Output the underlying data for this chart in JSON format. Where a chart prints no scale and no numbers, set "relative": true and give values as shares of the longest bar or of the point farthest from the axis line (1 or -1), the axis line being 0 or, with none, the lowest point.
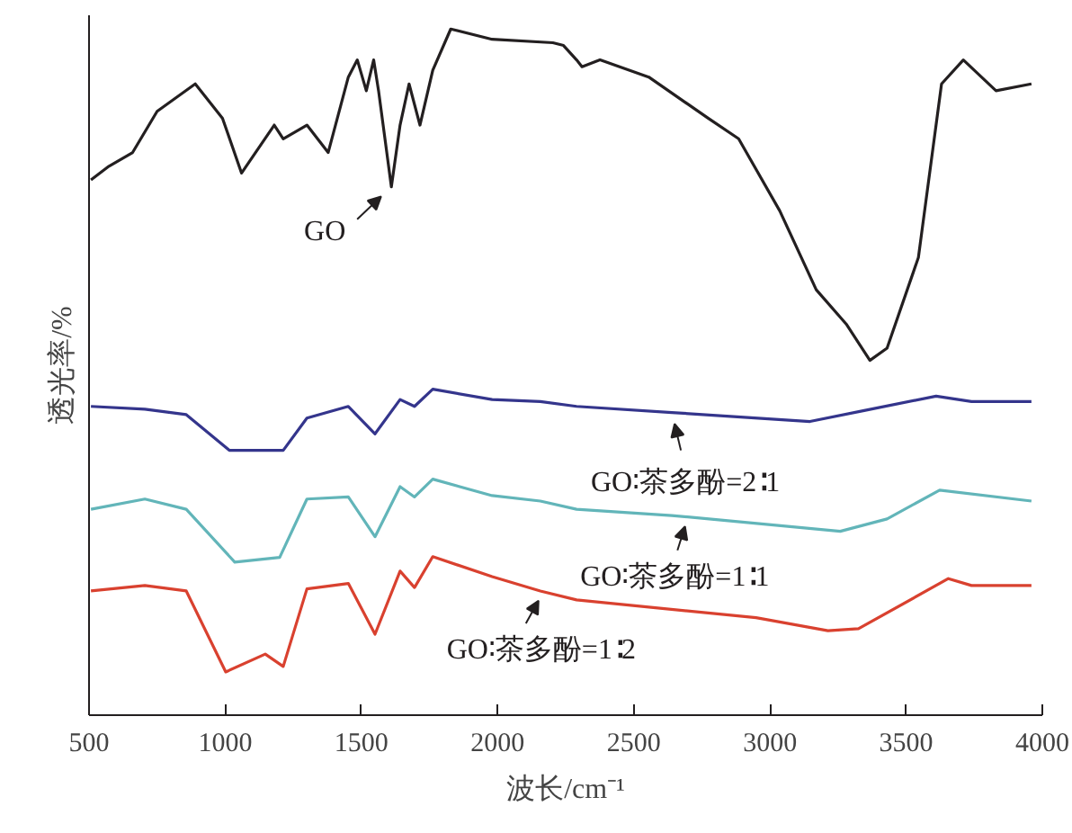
{
  "chart_data": {
    "type": "line",
    "relative": true,
    "xlabel": "波长/cm⁻¹",
    "ylabel": "透光率/%",
    "xlim": [
      500,
      4000
    ],
    "xticks": [
      500,
      1000,
      1500,
      2000,
      2500,
      3000,
      3500,
      4000
    ],
    "grid": false,
    "series": [
      {
        "color": "#231f20",
        "x": [
          507,
          573,
          660,
          750,
          890,
          990,
          1060,
          1180,
          1213,
          1300,
          1378,
          1452,
          1485,
          1518,
          1545,
          1563,
          1610,
          1642,
          1675,
          1715,
          1762,
          1828,
          1980,
          2203,
          2242,
          2290,
          2310,
          2376,
          2555,
          2773,
          2885,
          3036,
          3170,
          3280,
          3367,
          3430,
          3545,
          3630,
          3710,
          3830,
          3960
        ],
        "values": [
          0.78,
          0.8,
          0.82,
          0.88,
          0.92,
          0.87,
          0.79,
          0.86,
          0.84,
          0.86,
          0.82,
          0.93,
          0.955,
          0.91,
          0.955,
          0.91,
          0.77,
          0.86,
          0.92,
          0.86,
          0.94,
          1,
          0.985,
          0.98,
          0.976,
          0.955,
          0.945,
          0.955,
          0.93,
          0.87,
          0.84,
          0.735,
          0.62,
          0.57,
          0.517,
          0.535,
          0.667,
          0.92,
          0.955,
          0.91,
          0.92
        ]
      },
      {
        "color": "#34358c",
        "x": [
          507,
          705,
          857,
          1015,
          1213,
          1300,
          1452,
          1550,
          1642,
          1695,
          1762,
          1980,
          2157,
          2290,
          2640,
          3147,
          3346,
          3610,
          3740,
          3960
        ],
        "values": [
          0.45,
          0.446,
          0.438,
          0.386,
          0.386,
          0.433,
          0.45,
          0.41,
          0.46,
          0.45,
          0.475,
          0.46,
          0.457,
          0.45,
          0.441,
          0.428,
          0.444,
          0.465,
          0.457,
          0.457
        ]
      },
      {
        "color": "#62b5b9",
        "x": [
          507,
          705,
          857,
          1035,
          1200,
          1300,
          1452,
          1550,
          1642,
          1695,
          1762,
          1980,
          2157,
          2290,
          2640,
          3258,
          3430,
          3623,
          3960
        ],
        "values": [
          0.3,
          0.315,
          0.3,
          0.223,
          0.23,
          0.315,
          0.318,
          0.26,
          0.333,
          0.318,
          0.344,
          0.32,
          0.312,
          0.3,
          0.291,
          0.268,
          0.286,
          0.328,
          0.312
        ]
      },
      {
        "color": "#d9412f",
        "x": [
          507,
          705,
          857,
          1002,
          1147,
          1213,
          1300,
          1452,
          1550,
          1642,
          1695,
          1762,
          1980,
          2157,
          2290,
          2949,
          3213,
          3325,
          3655,
          3740,
          3960
        ],
        "values": [
          0.181,
          0.189,
          0.181,
          0.063,
          0.089,
          0.071,
          0.184,
          0.192,
          0.118,
          0.21,
          0.186,
          0.231,
          0.202,
          0.181,
          0.168,
          0.142,
          0.123,
          0.126,
          0.199,
          0.189,
          0.189
        ]
      }
    ],
    "annotations": [
      {
        "text": "GO",
        "x": 1610,
        "y": 0.77
      },
      {
        "text": "GO∶茶多酚=2∶1",
        "x": 2640,
        "y": 0.441
      },
      {
        "text": "GO∶茶多酚=1∶1",
        "x": 2700,
        "y": 0.29
      },
      {
        "text": "GO∶茶多酚=1∶2",
        "x": 2170,
        "y": 0.181
      }
    ]
  }
}
